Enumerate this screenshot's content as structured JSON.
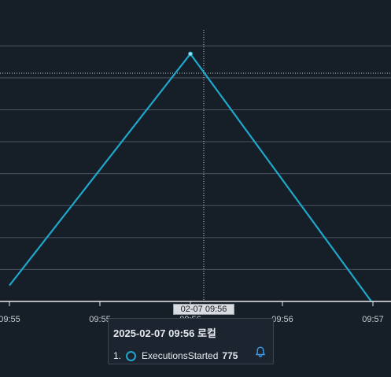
{
  "colors": {
    "background": "#161e28",
    "grid": "#4b5563",
    "series": "#1ea7c9",
    "axis": "#e8eaed",
    "bell": "#3b9be8"
  },
  "chart_data": {
    "type": "line",
    "title": "",
    "xlabel": "",
    "ylabel": "",
    "x_tick_labels": [
      "09:55",
      "09:55",
      "09:56",
      "09:57"
    ],
    "series": [
      {
        "name": "ExecutionsStarted",
        "points": [
          {
            "x": "09:55",
            "y": 630
          },
          {
            "x": "09:56",
            "y": 775
          },
          {
            "x": "09:57",
            "y": 620
          }
        ]
      }
    ],
    "ylim": [
      620,
      790
    ],
    "grid": true,
    "highlighted_point": {
      "x": "09:56",
      "y": 775
    }
  },
  "crosshair": {
    "time_label": "02-07 09:56",
    "partial_axis_label": "09:56"
  },
  "tooltip": {
    "title": "2025-02-07 09:56 로컬",
    "rows": [
      {
        "index": "1.",
        "name": "ExecutionsStarted",
        "value": "775",
        "icon": "bell-icon"
      }
    ]
  }
}
